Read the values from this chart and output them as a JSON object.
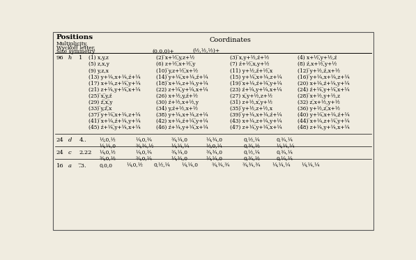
{
  "bg_color": "#f0ece0",
  "title": "Positions",
  "header1": "Multiplicity,",
  "header2": "Wyckoff letter,",
  "header3": "Site symmetry",
  "coord_title": "Coordinates",
  "origin1": "(0,0,0)+",
  "origin2": "(½,½,½)+",
  "rows_96": [
    [
      "(1) x,y,z",
      "(2) ̅x+½,̅y,z+½",
      "(3) ̅x,y+½,ź+½",
      "(4) x+½,̅y+½,ź"
    ],
    [
      "(5) z,x,y",
      "(6) z+½,̅x+½,̅y",
      "(7) ź+½,̅x,y+½",
      "(8) ź,x+½,̅y+½"
    ],
    [
      "(9) y,z,x",
      "(10) ̅y,z+½,̅x+½",
      "(11) y+½,ź+½,̅x",
      "(12) ̅y+½,ź,x+½"
    ],
    [
      "(13) y+¼,x+¼,ź+¼",
      "(14) ̅y+¼,̅x+¼,ź+¼",
      "(15) y+¼,̅x+¼,z+¼",
      "(16) ̅y+¼,x+¼,z+¼"
    ],
    [
      "(17) x+¼,z+¼,̅y+¼",
      "(18) ̅x+¼,z+¼,y+¼",
      "(19) ̅x+¼,ź+¼,̅y+¼",
      "(20) x+¼,ź+¼,y+¼"
    ],
    [
      "(21) z+¼,y+¼,̅x+¼",
      "(22) z+¼,̅y+¼,x+¼",
      "(23) ź+¼,y+¼,x+¼",
      "(24) ź+¼,̅y+¼,̅x+¼"
    ],
    [
      "(25) ̅x,̅y,ź",
      "(26) x+½,y,ź+½",
      "(27) x,̅y+½,z+½",
      "(28) ̅x+½,y+½,z"
    ],
    [
      "(29) ź,̅x,̅y",
      "(30) ź+½,x+½,y",
      "(31) z+½,x,̅y+½",
      "(32) z,̅x+½,y+½"
    ],
    [
      "(33) ̅y,ź,̅x",
      "(34) y,ź+½,x+½",
      "(35) ̅y+½,z+½,x",
      "(36) y+½,z,̅x+½"
    ],
    [
      "(37) ̅y+¼,̅x+¼,z+¼",
      "(38) y+¼,x+¼,z+¼",
      "(39) ̅y+¼,x+¼,ź+¼",
      "(40) y+¼,̅x+¼,ź+¼"
    ],
    [
      "(41) ̅x+¼,ź+¼,y+¼",
      "(42) x+¼,ź+¼,̅y+¼",
      "(43) x+¼,z+¼,y+¼",
      "(44) ̅x+¼,z+¼,̅y+¼"
    ],
    [
      "(45) ź+¼,̅y+¼,x+¼",
      "(46) ź+¼,y+¼,̅x+¼",
      "(47) z+¼,̅y+¼,̅x+¼",
      "(48) z+¼,y+¼,x+¼"
    ]
  ],
  "row24d_label": [
    "24",
    "d",
    "4.."
  ],
  "row24d_line1": [
    "½,0,½",
    "¼,0,¾",
    "¾,¼,0",
    "¼,¾,0",
    "0,½,¼",
    "0,¾,¼"
  ],
  "row24d_line2": [
    "¼,¼,0",
    "¾,¾,½",
    "¼,¼,¼",
    "½,0,¼",
    "0,¾,½",
    "¼,¼,¼"
  ],
  "row24c_label": [
    "24",
    "c",
    "2.22"
  ],
  "row24c_line1": [
    "¼,0,½",
    "¼,0,¾",
    "¾,¼,0",
    "¾,¾,0",
    "0,½,¼",
    "0,¾,¼"
  ],
  "row24c_line2": [
    "¾,0,½",
    "¾,0,¼",
    "¼,¾,0",
    "¼,¼,0",
    "0,¾,½",
    "0,¼,¼"
  ],
  "row16a_label": [
    "16",
    "a",
    ".̅{3}."
  ],
  "row16a_coords": [
    "0,0,0",
    "¼,0,½",
    "0,½,¼",
    "¼,¼,0",
    "¾,¾,¾",
    "¾,¾,¾",
    "¼,¼,¼",
    "¼,¼,¼"
  ]
}
